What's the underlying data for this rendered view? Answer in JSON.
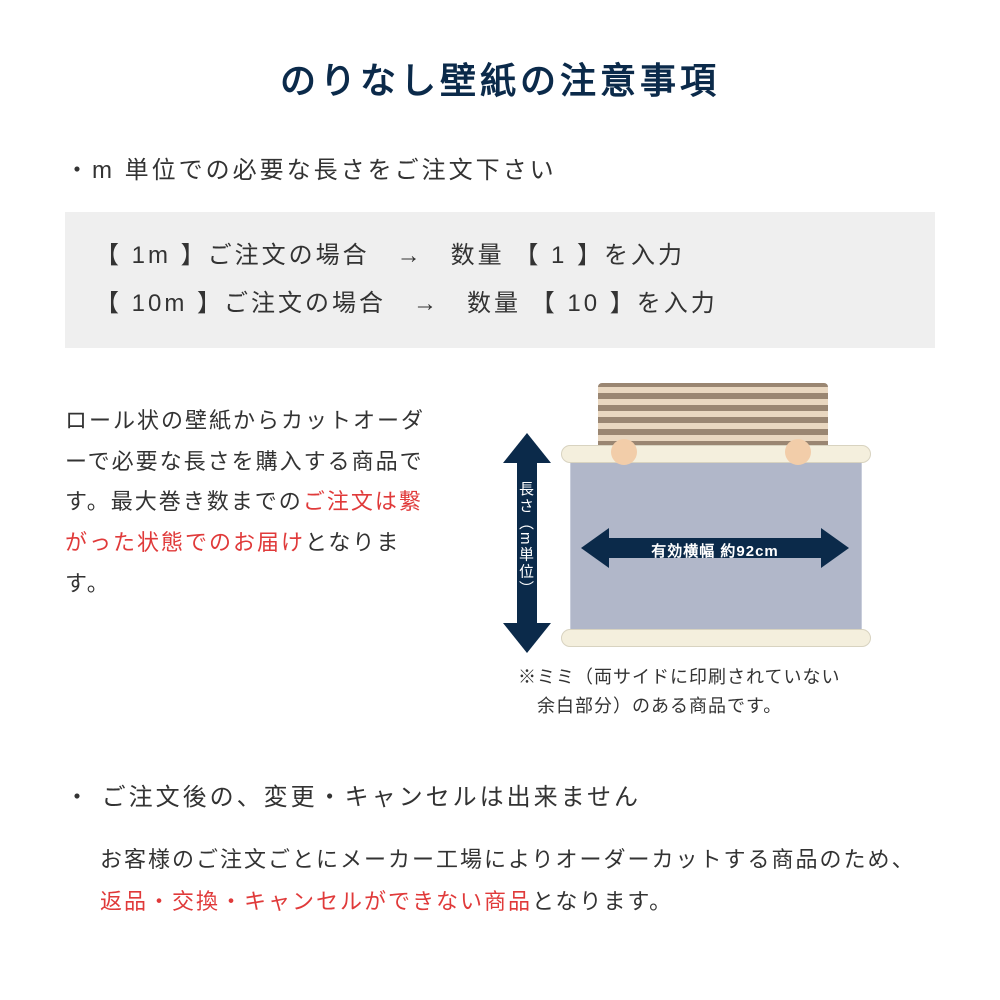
{
  "colors": {
    "navy": "#0b2a4a",
    "red": "#e03a3a",
    "text": "#333333",
    "box_bg": "#efefef",
    "panel": "#b1b7c9",
    "roll": "#f4efdd"
  },
  "title": "のりなし壁紙の注意事項",
  "bullet1": "・m 単位での必要な長さをご注文下さい",
  "example": {
    "line1": "【 1m 】ご注文の場合　→　数量 【 1 】を入力",
    "line2": "【 10m 】ご注文の場合　→　数量 【 10 】を入力"
  },
  "desc_text": {
    "part1": "ロール状の壁紙からカットオーダーで必要な長さを購入する商品です。最大巻き数までの",
    "part2_red": "ご注文は繋がった状態でのお届け",
    "part3": "となります。"
  },
  "diagram": {
    "vertical_label": "長さ（m単位）",
    "horizontal_label": "有効横幅 約92cm",
    "note_line1": "※ミミ（両サイドに印刷されていない",
    "note_line2": "　余白部分）のある商品です。"
  },
  "bullet2": "・ ご注文後の、変更・キャンセルは出来ません",
  "desc2": {
    "part1": "お客様のご注文ごとにメーカー工場によりオーダーカットする商品のため、",
    "part2_red": "返品・交換・キャンセルができない商品",
    "part3": "となります。"
  }
}
